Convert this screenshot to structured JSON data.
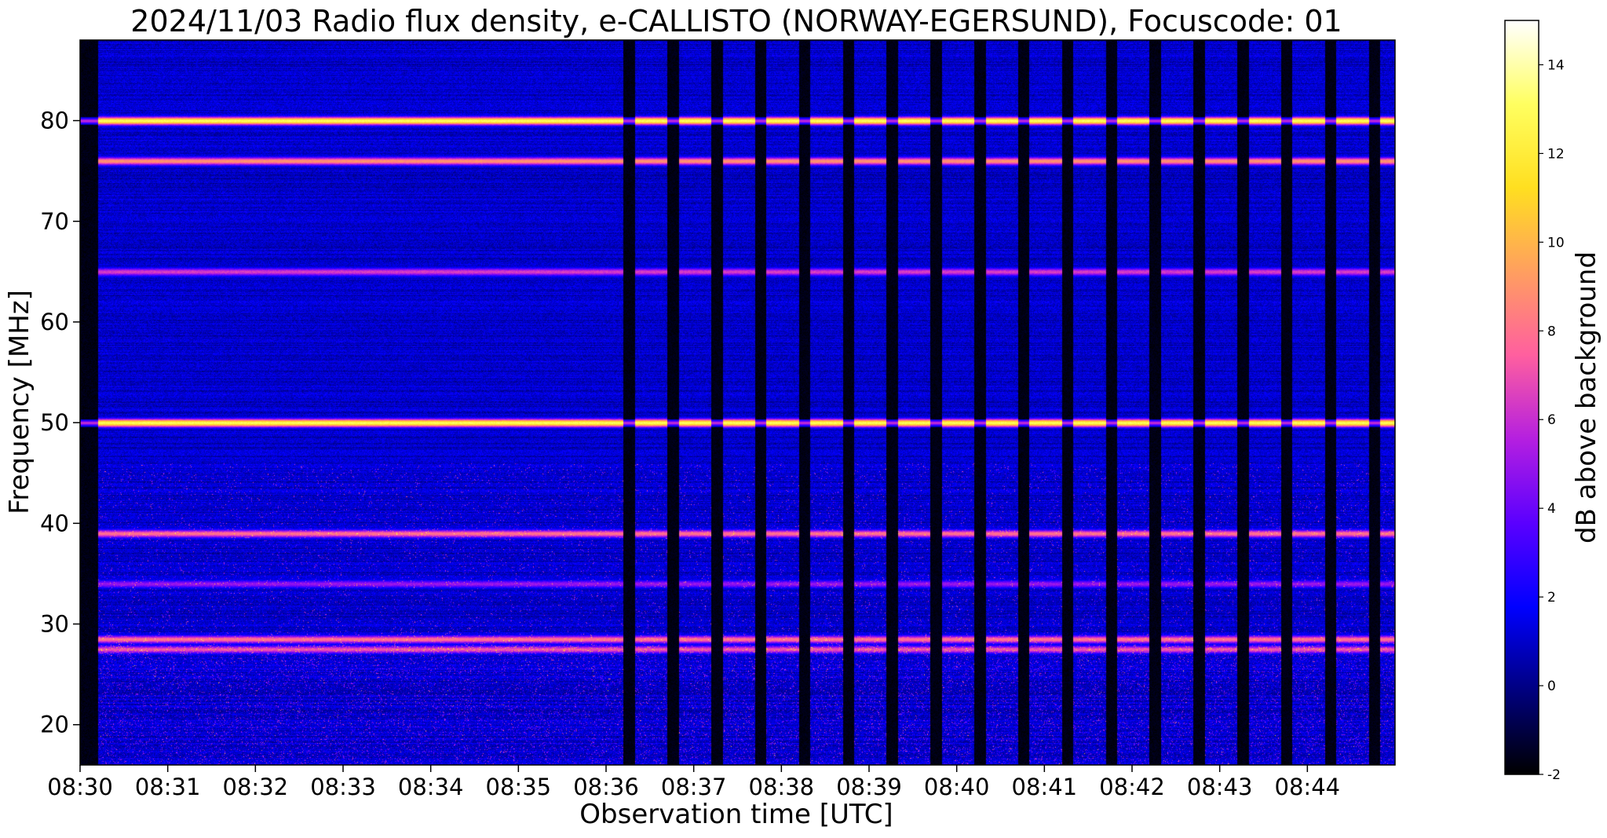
{
  "chart_data": {
    "type": "heatmap",
    "title": "2024/11/03  Radio flux density, e-CALLISTO (NORWAY-EGERSUND), Focuscode: 01",
    "xlabel": "Observation time [UTC]",
    "ylabel": "Frequency [MHz]",
    "xlim": [
      "08:30",
      "08:45"
    ],
    "ylim": [
      16,
      88
    ],
    "x_ticks": [
      "08:30",
      "08:31",
      "08:32",
      "08:33",
      "08:34",
      "08:35",
      "08:36",
      "08:37",
      "08:38",
      "08:39",
      "08:40",
      "08:41",
      "08:42",
      "08:43",
      "08:44"
    ],
    "y_ticks": [
      20,
      30,
      40,
      50,
      60,
      70,
      80
    ],
    "colorbar": {
      "label": "dB above background",
      "range": [
        -2,
        15
      ],
      "ticks": [
        -2,
        0,
        2,
        4,
        6,
        8,
        10,
        12,
        14
      ],
      "colormap": "gnuplot2",
      "stops": [
        "#000000",
        "#00007f",
        "#0000ff",
        "#5a00ff",
        "#b41fe0",
        "#ff5f9f",
        "#ff9f5f",
        "#ffdf20",
        "#ffff60",
        "#ffffff"
      ]
    },
    "features": {
      "persistent_bands_mhz": [
        {
          "freq": 80,
          "level_db": 13
        },
        {
          "freq": 76,
          "level_db": 9
        },
        {
          "freq": 65,
          "level_db": 6.5
        },
        {
          "freq": 50,
          "level_db": 13
        },
        {
          "freq": 39,
          "level_db": 8
        },
        {
          "freq": 34,
          "level_db": 5
        },
        {
          "freq": 28.5,
          "level_db": 8
        },
        {
          "freq": 27.5,
          "level_db": 7
        }
      ],
      "gap_pattern_start": "08:36:10",
      "gap_period_minutes": 0.5,
      "gap_level_db": -2,
      "background_level_db": 1
    }
  }
}
